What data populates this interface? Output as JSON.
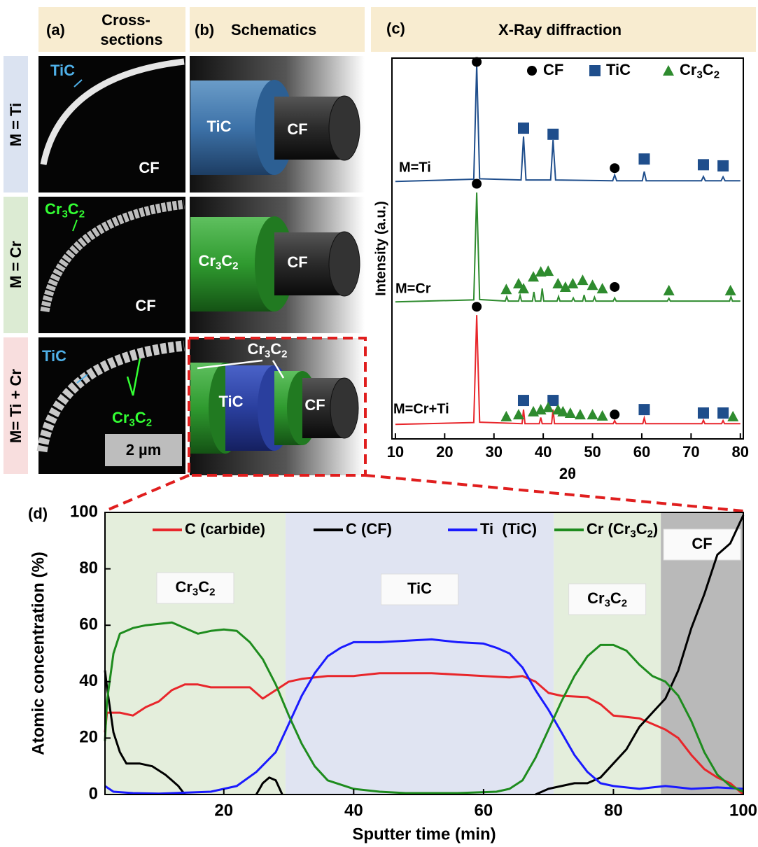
{
  "headers": [
    {
      "label": "(a)",
      "title_lines": [
        "Cross-",
        "sections"
      ]
    },
    {
      "label": "(b)",
      "title": "Schematics"
    }
  ],
  "rows": [
    {
      "label": "M = Ti",
      "cross_section": [
        "TiC",
        "CF"
      ],
      "schematic": [
        "TiC",
        "CF"
      ]
    },
    {
      "label": "M = Cr",
      "cross_section": [
        "Cr3C2",
        "CF"
      ],
      "schematic": [
        "Cr3C2",
        "CF"
      ]
    },
    {
      "label": "M= Ti + Cr",
      "cross_section": [
        "TiC",
        "Cr3C2"
      ],
      "scale_bar": "2 µm",
      "schematic": [
        "Cr3C2",
        "TiC",
        "CF"
      ]
    }
  ],
  "chart_data": [
    {
      "type": "line",
      "panel_label": "(c)",
      "title": "X-Ray diffraction",
      "xlabel": "2θ",
      "ylabel": "Intensity (a.u.)",
      "xlim": [
        9.3,
        80.6
      ],
      "ylim": [
        0,
        100
      ],
      "xticks": [
        10,
        20,
        30,
        40,
        50,
        60,
        70,
        80
      ],
      "series": [
        {
          "name": "M=Ti",
          "color": "#1f4e8c",
          "x": [
            10,
            25.9,
            26.5,
            27.1,
            35.5,
            36,
            36.5,
            41.5,
            42,
            42.5,
            54.1,
            54.5,
            54.9,
            60.1,
            60.5,
            60.9,
            72.1,
            72.5,
            72.9,
            76.1,
            76.5,
            76.9,
            80
          ],
          "values": [
            67.6,
            68.2,
            98.3,
            68.3,
            68,
            79.4,
            68,
            68,
            78.5,
            68,
            67.8,
            69.3,
            67.8,
            67.8,
            70.2,
            67.8,
            67.8,
            68.9,
            67.8,
            67.8,
            68.8,
            67.8,
            67.8
          ]
        },
        {
          "name": "M=Cr",
          "color": "#2e8b2e",
          "x": [
            10,
            25.9,
            26.5,
            27.1,
            32.3,
            32.6,
            32.9,
            35,
            35.3,
            35.6,
            37.8,
            38.1,
            38.4,
            39.5,
            39.8,
            40.1,
            42.8,
            43.1,
            43.4,
            45.8,
            46.1,
            46.4,
            48,
            48.3,
            48.6,
            50.1,
            50.4,
            50.7,
            54.2,
            54.5,
            54.8,
            65.2,
            65.5,
            65.8,
            77.8,
            78.1,
            78.4,
            80
          ],
          "values": [
            36,
            36.5,
            64.7,
            36.6,
            36.2,
            37.3,
            36.2,
            36.2,
            37.7,
            36.2,
            36.2,
            38.6,
            36.2,
            36.2,
            39.5,
            36.2,
            36.2,
            37.4,
            36.2,
            36.2,
            37,
            36.2,
            36.2,
            37.8,
            36.2,
            36.2,
            37.2,
            36.2,
            36.2,
            37,
            36.2,
            36.2,
            36.9,
            36.2,
            36.2,
            37.3,
            36.2,
            36.2
          ]
        },
        {
          "name": "M=Cr+Ti",
          "color": "#e8262b",
          "x": [
            10,
            25.9,
            26.5,
            27.1,
            35.7,
            36,
            36.3,
            39.2,
            39.5,
            39.8,
            41.7,
            42,
            42.3,
            54.2,
            54.5,
            54.8,
            60.2,
            60.5,
            60.8,
            72.2,
            72.5,
            72.8,
            76.2,
            76.5,
            76.8,
            80
          ],
          "values": [
            3.8,
            4.3,
            32.5,
            4.4,
            4,
            7.7,
            4,
            4,
            5.6,
            4,
            4,
            7.7,
            4,
            4,
            4.8,
            4,
            4,
            5.5,
            4,
            4,
            4.9,
            4,
            4,
            4.8,
            4,
            4
          ]
        }
      ],
      "markers": [
        {
          "name": "CF",
          "shape": "circle",
          "color": "#000000",
          "x": [
            26.5,
            54.5,
            26.5,
            54.5,
            26.5,
            54.5
          ],
          "values": [
            99,
            71.1,
            67,
            39.9,
            34.7,
            6.4
          ]
        },
        {
          "name": "TiC",
          "shape": "square",
          "color": "#1f4e8c",
          "x": [
            36,
            42,
            60.5,
            72.5,
            76.5,
            36,
            42,
            60.5,
            72.5,
            76.5
          ],
          "values": [
            81.6,
            80,
            73.5,
            72,
            71.7,
            10.1,
            10.1,
            7.7,
            6.8,
            6.8
          ]
        },
        {
          "name": "Cr3C2",
          "shape": "triangle",
          "color": "#2e8b2e",
          "x": [
            32.5,
            35,
            36,
            38,
            39.5,
            41,
            43,
            44.5,
            46,
            48,
            50,
            52,
            65.5,
            78,
            32.5,
            35,
            38,
            39.5,
            41,
            43,
            44,
            45.5,
            47.5,
            50,
            52,
            78.5
          ],
          "values": [
            39.3,
            40.8,
            39.5,
            42.6,
            43.9,
            44.1,
            40.8,
            39.9,
            40.8,
            41.7,
            40.4,
            39.5,
            39,
            39,
            5.9,
            6.4,
            7.2,
            7.7,
            8.3,
            7.7,
            7.2,
            6.8,
            6.4,
            6.4,
            6.1,
            5.9
          ]
        }
      ]
    },
    {
      "type": "line",
      "panel_label": "(d)",
      "xlabel": "Sputter time (min)",
      "ylabel": "Atomic concentration (%)",
      "xlim": [
        1.7,
        100
      ],
      "ylim": [
        0,
        100
      ],
      "xticks": [
        20,
        40,
        60,
        80,
        100
      ],
      "yticks": [
        0,
        20,
        40,
        60,
        80,
        100
      ],
      "regions": [
        {
          "label": "Cr3C2",
          "start": 1.7,
          "end": 29.5,
          "color": "#e4eedc"
        },
        {
          "label": "TiC",
          "start": 29.5,
          "end": 70.8,
          "color": "#e0e4f2"
        },
        {
          "label": "Cr3C2",
          "start": 70.8,
          "end": 87.3,
          "color": "#e4eedc"
        },
        {
          "label": "CF",
          "start": 87.3,
          "end": 100,
          "color": "#b9b9b9"
        }
      ],
      "series": [
        {
          "name": "C (carbide)",
          "color": "#e8262b",
          "x": [
            1.7,
            2,
            4,
            6,
            8,
            10,
            12,
            14,
            16,
            18,
            20,
            22,
            24,
            26,
            28,
            30,
            32,
            36,
            40,
            44,
            48,
            52,
            56,
            60,
            64,
            66,
            68,
            70,
            72,
            76,
            78,
            80,
            84,
            88,
            90,
            92,
            94,
            96,
            98,
            100
          ],
          "values": [
            22,
            29,
            29,
            28,
            31,
            33,
            37,
            39,
            39,
            38,
            38,
            38,
            38,
            34,
            37,
            40,
            41,
            42,
            42,
            43,
            43,
            43,
            42.5,
            42,
            41.5,
            42,
            40,
            36,
            35,
            34.5,
            32,
            28,
            27,
            23,
            20,
            14,
            9,
            6,
            4,
            0
          ]
        },
        {
          "name": "C (CF)",
          "color": "#000000",
          "x": [
            1.7,
            2,
            3,
            4,
            5,
            7,
            9,
            11,
            12,
            13,
            14,
            20,
            25,
            26,
            27,
            28,
            29,
            50,
            68,
            70,
            72,
            74,
            76,
            78,
            80,
            82,
            84,
            86,
            88,
            90,
            92,
            94,
            96,
            98,
            100
          ],
          "values": [
            44,
            38,
            22,
            15,
            11,
            11,
            10,
            7,
            5,
            3,
            0,
            null,
            0,
            4,
            6,
            5,
            0,
            null,
            0,
            2,
            3,
            4,
            4,
            6,
            11,
            16,
            24,
            29,
            34,
            44,
            59,
            71,
            85,
            89,
            99
          ]
        },
        {
          "name": "Ti  (TiC)",
          "color": "#1a1aff",
          "x": [
            1.7,
            3,
            6,
            10,
            18,
            22,
            25,
            28,
            30,
            32,
            34,
            36,
            38,
            40,
            44,
            48,
            52,
            56,
            60,
            62,
            64,
            66,
            68,
            70,
            72,
            74,
            76,
            78,
            80,
            84,
            88,
            92,
            96,
            100
          ],
          "values": [
            3,
            1,
            0.5,
            0.3,
            1,
            3,
            8,
            15,
            25,
            35,
            43,
            49,
            52,
            54,
            54,
            54.5,
            55,
            54,
            53.5,
            52,
            50,
            45,
            37,
            30,
            22,
            14,
            8,
            4,
            3,
            2,
            3,
            2,
            2.5,
            2
          ]
        },
        {
          "name": "Cr (Cr3C2)",
          "color": "#1e8c1e",
          "x": [
            1.7,
            2,
            3,
            4,
            6,
            8,
            10,
            12,
            14,
            16,
            18,
            20,
            22,
            24,
            26,
            28,
            30,
            32,
            34,
            36,
            40,
            44,
            48,
            56,
            62,
            64,
            66,
            68,
            70,
            72,
            74,
            76,
            78,
            80,
            82,
            84,
            86,
            88,
            90,
            92,
            94,
            96,
            98,
            100
          ],
          "values": [
            19,
            33,
            50,
            57,
            59,
            60,
            60.5,
            61,
            59,
            57,
            58,
            58.5,
            58,
            54,
            48,
            39,
            28,
            18,
            10,
            5,
            2,
            1,
            0.5,
            0.5,
            1,
            2,
            5,
            13,
            23,
            33,
            42,
            49,
            53,
            53,
            51,
            46,
            42,
            40,
            35,
            26,
            15,
            7,
            3,
            1
          ]
        }
      ]
    }
  ]
}
